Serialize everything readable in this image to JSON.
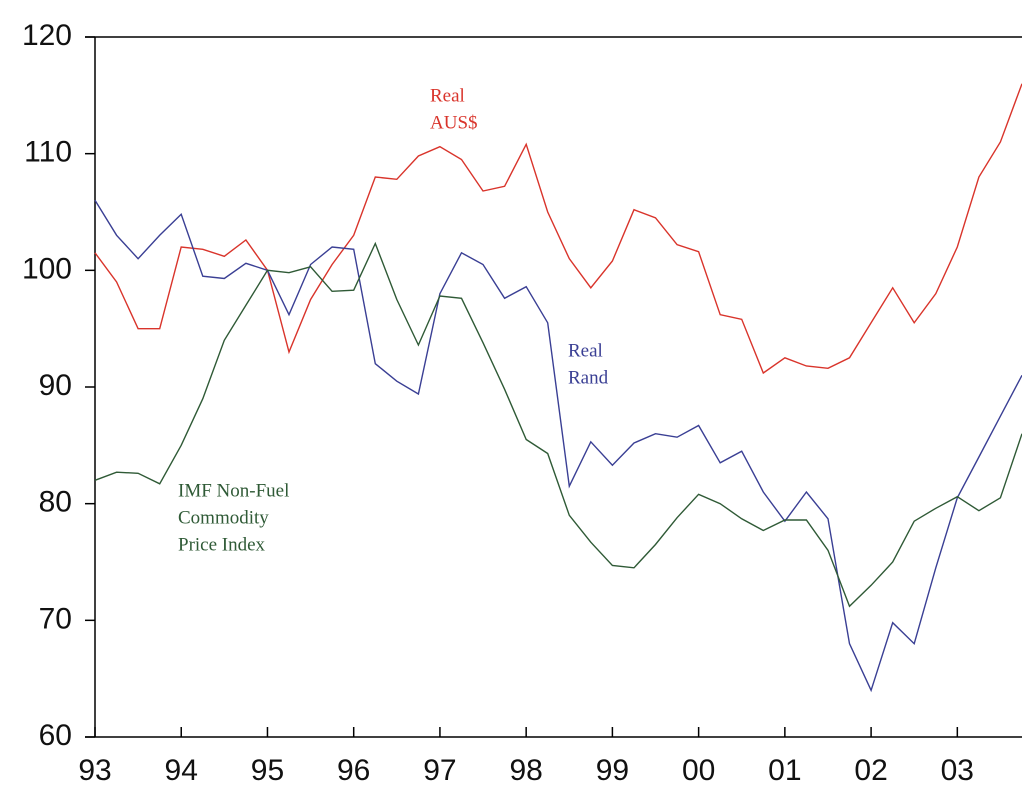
{
  "chart_data": {
    "type": "line",
    "x": [
      1993,
      1993.25,
      1993.5,
      1993.75,
      1994,
      1994.25,
      1994.5,
      1994.75,
      1995,
      1995.25,
      1995.5,
      1995.75,
      1996,
      1996.25,
      1996.5,
      1996.75,
      1997,
      1997.25,
      1997.5,
      1997.75,
      1998,
      1998.25,
      1998.5,
      1998.75,
      1999,
      1999.25,
      1999.5,
      1999.75,
      2000,
      2000.25,
      2000.5,
      2000.75,
      2001,
      2001.25,
      2001.5,
      2001.75,
      2002,
      2002.25,
      2002.5,
      2002.75,
      2003,
      2003.25,
      2003.5,
      2003.75
    ],
    "series": [
      {
        "name": "Real AUS$",
        "color": "#d9342b",
        "values": [
          101.5,
          99,
          95,
          95,
          102,
          101.8,
          101.2,
          102.6,
          100,
          93,
          97.5,
          100.5,
          103,
          108,
          107.8,
          109.8,
          110.6,
          109.5,
          106.8,
          107.2,
          110.8,
          105,
          101,
          98.5,
          100.8,
          105.2,
          104.5,
          102.2,
          101.6,
          96.2,
          95.8,
          91.2,
          92.5,
          91.8,
          91.6,
          92.5,
          95.5,
          98.5,
          95.5,
          98,
          102,
          108,
          111,
          116
        ]
      },
      {
        "name": "Real Rand",
        "color": "#3a3f94",
        "values": [
          106,
          103,
          101,
          103,
          104.8,
          99.5,
          99.3,
          100.6,
          100,
          96.2,
          100.5,
          102,
          101.8,
          92,
          90.5,
          89.4,
          98,
          101.5,
          100.5,
          97.6,
          98.6,
          95.5,
          81.5,
          85.3,
          83.3,
          85.2,
          86,
          85.7,
          86.7,
          83.5,
          84.5,
          81,
          78.5,
          81,
          78.7,
          68,
          64,
          69.8,
          68,
          74.5,
          80.5,
          84,
          87.5,
          91
        ]
      },
      {
        "name": "IMF Non-Fuel Commodity Price Index",
        "color": "#2f5a36",
        "values": [
          82,
          82.7,
          82.6,
          81.7,
          85,
          89,
          94,
          97,
          100,
          99.8,
          100.3,
          98.2,
          98.3,
          102.3,
          97.5,
          93.6,
          97.8,
          97.6,
          93.8,
          89.8,
          85.5,
          84.3,
          79,
          76.7,
          74.7,
          74.5,
          76.5,
          78.8,
          80.8,
          80,
          78.7,
          77.7,
          78.6,
          78.6,
          76,
          71.2,
          73,
          75,
          78.5,
          79.6,
          80.6,
          79.4,
          80.5,
          86
        ]
      }
    ],
    "annotations": [
      [
        "Real",
        "AUS$"
      ],
      [
        "Real",
        "Rand"
      ],
      [
        "IMF Non-Fuel",
        "Commodity",
        "Price Index"
      ]
    ],
    "xlim": [
      1993,
      2003.75
    ],
    "xticks": [
      {
        "value": 1993,
        "label": "93"
      },
      {
        "value": 1994,
        "label": "94"
      },
      {
        "value": 1995,
        "label": "95"
      },
      {
        "value": 1996,
        "label": "96"
      },
      {
        "value": 1997,
        "label": "97"
      },
      {
        "value": 1998,
        "label": "98"
      },
      {
        "value": 1999,
        "label": "99"
      },
      {
        "value": 2000,
        "label": "00"
      },
      {
        "value": 2001,
        "label": "01"
      },
      {
        "value": 2002,
        "label": "02"
      },
      {
        "value": 2003,
        "label": "03"
      }
    ],
    "ylim": [
      60,
      120
    ],
    "yticks": [
      60,
      70,
      80,
      90,
      100,
      110,
      120
    ],
    "grid": false
  }
}
